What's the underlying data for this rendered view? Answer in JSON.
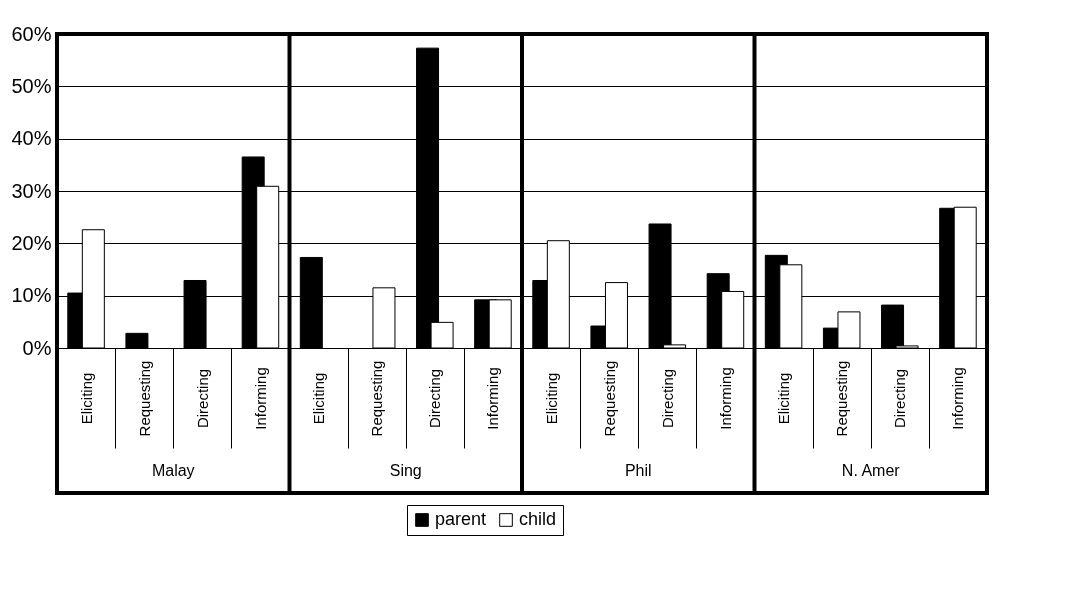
{
  "chart_data": {
    "type": "bar",
    "categories": [
      "Eliciting",
      "Requesting",
      "Directing",
      "Informing",
      "Eliciting",
      "Requesting",
      "Directing",
      "Informing",
      "Eliciting",
      "Requesting",
      "Directing",
      "Informing",
      "Eliciting",
      "Requesting",
      "Directing",
      "Informing"
    ],
    "series": [
      {
        "name": "parent",
        "color": "#000000",
        "values": [
          10.5,
          2.8,
          12.9,
          36.5,
          17.3,
          null,
          57.3,
          9.2,
          12.9,
          4.2,
          23.7,
          14.2,
          17.7,
          3.8,
          8.2,
          26.7
        ]
      },
      {
        "name": "child",
        "color": "#ffffff",
        "values": [
          22.6,
          null,
          null,
          30.9,
          null,
          11.5,
          4.9,
          9.2,
          20.5,
          12.5,
          0.6,
          10.8,
          15.9,
          6.9,
          0.4,
          26.9
        ]
      }
    ],
    "annotations": [
      "Malay",
      "Sing",
      "Phil",
      "N. Amer"
    ],
    "ylim": [
      0,
      60
    ],
    "yticks": [
      {
        "value": 0,
        "label": "0%"
      },
      {
        "value": 10,
        "label": "10%"
      },
      {
        "value": 20,
        "label": "20%"
      },
      {
        "value": 30,
        "label": "30%"
      },
      {
        "value": 40,
        "label": "40%"
      },
      {
        "value": 50,
        "label": "50%"
      },
      {
        "value": 60,
        "label": "60%"
      }
    ],
    "grid": "y",
    "legend": "bottom"
  }
}
